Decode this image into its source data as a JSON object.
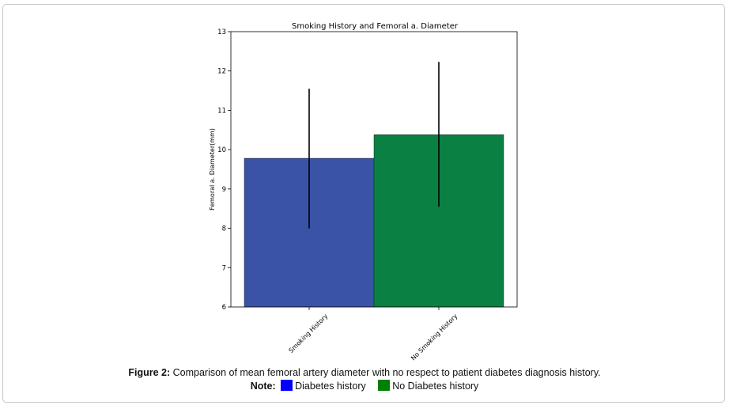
{
  "chart_data": {
    "type": "bar",
    "title": "Smoking History and Femoral a. Diameter",
    "xlabel": "",
    "ylabel": "Femoral a. Diameter(mm)",
    "categories": [
      "Smoking History",
      "No Smoking History"
    ],
    "values": [
      9.78,
      10.38
    ],
    "error_low": [
      8.0,
      8.55
    ],
    "error_high": [
      11.55,
      12.23
    ],
    "bar_colors": [
      "#3a53a7",
      "#0b8043"
    ],
    "ylim": [
      6,
      13
    ],
    "yticks": [
      "6",
      "7",
      "8",
      "9",
      "10",
      "11",
      "12",
      "13"
    ],
    "grid": false
  },
  "caption": {
    "label": "Figure 2:",
    "text": " Comparison of mean femoral artery diameter with no respect to patient diabetes diagnosis history."
  },
  "note": {
    "label": "Note:",
    "items": [
      {
        "label": "Diabetes history",
        "color": "#0000ff"
      },
      {
        "label": "No Diabetes history",
        "color": "#008000"
      }
    ]
  }
}
